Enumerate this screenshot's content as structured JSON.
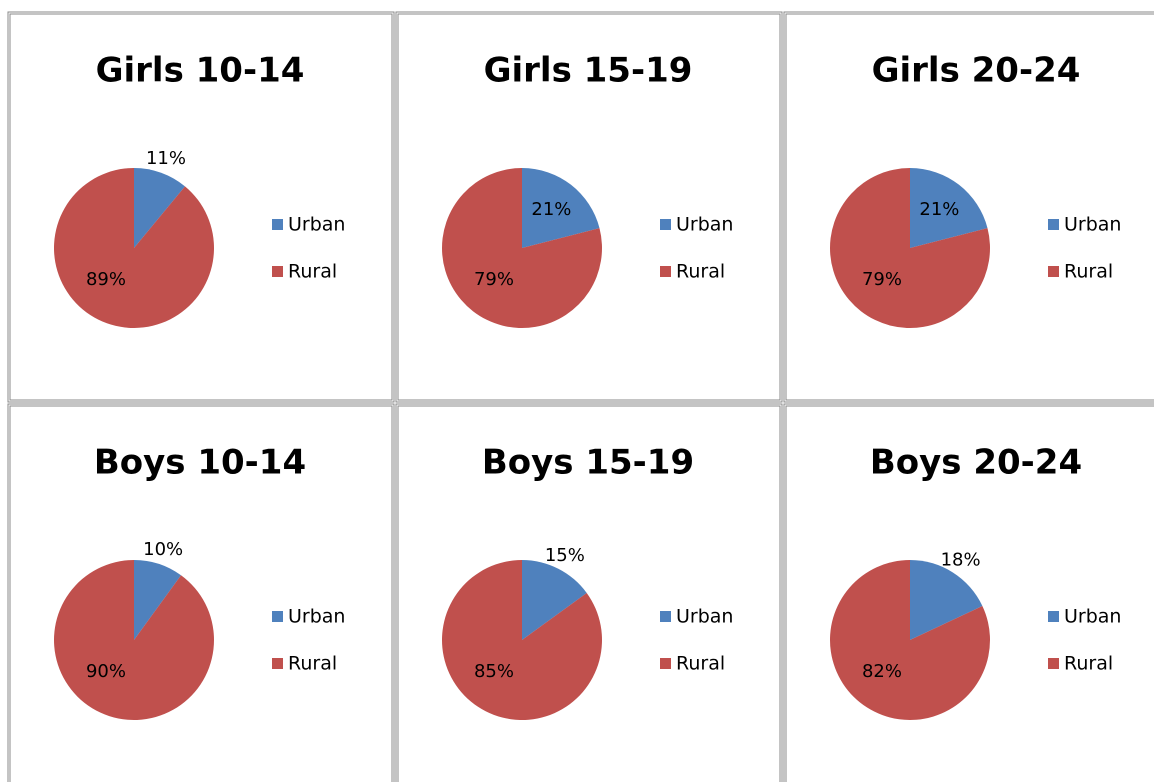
{
  "chart_data": [
    {
      "type": "pie",
      "title": "Girls 10-14",
      "categories": [
        "Urban",
        "Rural"
      ],
      "values": [
        11,
        89
      ],
      "value_labels": [
        "11%",
        "89%"
      ],
      "colors": [
        "#4f81bd",
        "#c0504d"
      ]
    },
    {
      "type": "pie",
      "title": "Girls 15-19",
      "categories": [
        "Urban",
        "Rural"
      ],
      "values": [
        21,
        79
      ],
      "value_labels": [
        "21%",
        "79%"
      ],
      "colors": [
        "#4f81bd",
        "#c0504d"
      ]
    },
    {
      "type": "pie",
      "title": "Girls 20-24",
      "categories": [
        "Urban",
        "Rural"
      ],
      "values": [
        21,
        79
      ],
      "value_labels": [
        "21%",
        "79%"
      ],
      "colors": [
        "#4f81bd",
        "#c0504d"
      ]
    },
    {
      "type": "pie",
      "title": "Boys 10-14",
      "categories": [
        "Urban",
        "Rural"
      ],
      "values": [
        10,
        90
      ],
      "value_labels": [
        "10%",
        "90%"
      ],
      "colors": [
        "#4f81bd",
        "#c0504d"
      ]
    },
    {
      "type": "pie",
      "title": "Boys 15-19",
      "categories": [
        "Urban",
        "Rural"
      ],
      "values": [
        15,
        85
      ],
      "value_labels": [
        "15%",
        "85%"
      ],
      "colors": [
        "#4f81bd",
        "#c0504d"
      ]
    },
    {
      "type": "pie",
      "title": "Boys 20-24",
      "categories": [
        "Urban",
        "Rural"
      ],
      "values": [
        18,
        82
      ],
      "value_labels": [
        "18%",
        "82%"
      ],
      "colors": [
        "#4f81bd",
        "#c0504d"
      ]
    }
  ]
}
